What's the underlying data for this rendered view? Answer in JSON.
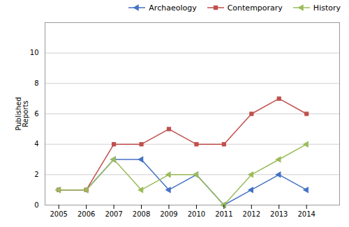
{
  "chart_data": {
    "type": "line",
    "x": [
      2005,
      2006,
      2007,
      2008,
      2009,
      2010,
      2011,
      2012,
      2013,
      2014
    ],
    "series": [
      {
        "name": "Archaeology",
        "color": "#4472C4",
        "marker": "triangle-left",
        "values": [
          1,
          1,
          3,
          3,
          1,
          2,
          0,
          1,
          2,
          1
        ]
      },
      {
        "name": "Contemporary",
        "color": "#C0504D",
        "marker": "square",
        "values": [
          1,
          1,
          4,
          4,
          5,
          4,
          4,
          6,
          7,
          6
        ]
      },
      {
        "name": "History",
        "color": "#9BBB59",
        "marker": "triangle-left",
        "values": [
          1,
          1,
          3,
          1,
          2,
          2,
          0,
          2,
          3,
          4
        ]
      }
    ],
    "xlim": [
      2004.5,
      2015.2
    ],
    "xticks": [
      2005,
      2006,
      2007,
      2008,
      2009,
      2010,
      2011,
      2012,
      2013,
      2014
    ],
    "ylim": [
      0,
      12
    ],
    "yticks": [
      0,
      2,
      4,
      6,
      8,
      10
    ],
    "ylabel": "Published\nReports",
    "grid": "y",
    "legend": "upper right"
  }
}
